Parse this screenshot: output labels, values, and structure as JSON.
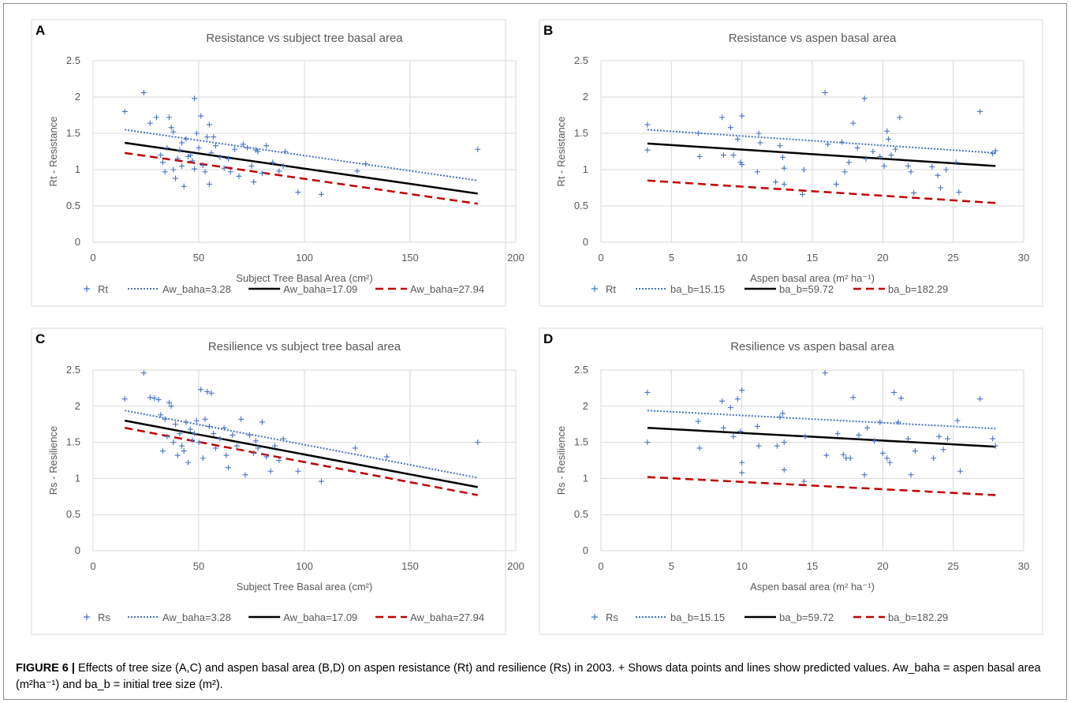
{
  "chart_data": [
    {
      "panel": "A",
      "type": "scatter",
      "title": "Resistance vs subject tree basal area",
      "xlabel": "Subject Tree Basal Area (cm²)",
      "ylabel": "Rt - Resistance",
      "xlim": [
        0,
        200
      ],
      "ylim": [
        0,
        2.5
      ],
      "xticks": [
        "0",
        "50",
        "100",
        "150",
        "200"
      ],
      "yticks": [
        "0",
        "0.5",
        "1",
        "1.5",
        "2",
        "2.5"
      ],
      "grid": true,
      "legend_position": "bottom",
      "points_name": "Rt",
      "points": [
        [
          15,
          1.8
        ],
        [
          24,
          2.06
        ],
        [
          27,
          1.64
        ],
        [
          30,
          1.72
        ],
        [
          32,
          1.2
        ],
        [
          33,
          1.1
        ],
        [
          34,
          0.97
        ],
        [
          35,
          1.3
        ],
        [
          36,
          1.72
        ],
        [
          37,
          1.58
        ],
        [
          38,
          1.52
        ],
        [
          38,
          1.0
        ],
        [
          39,
          0.88
        ],
        [
          40,
          1.15
        ],
        [
          41,
          1.27
        ],
        [
          42,
          1.37
        ],
        [
          42,
          1.05
        ],
        [
          43,
          0.77
        ],
        [
          44,
          1.42
        ],
        [
          45,
          1.18
        ],
        [
          46,
          1.2
        ],
        [
          47,
          1.12
        ],
        [
          48,
          1.01
        ],
        [
          48,
          1.98
        ],
        [
          49,
          1.5
        ],
        [
          50,
          1.3
        ],
        [
          51,
          1.74
        ],
        [
          52,
          1.06
        ],
        [
          53,
          0.97
        ],
        [
          54,
          1.45
        ],
        [
          55,
          1.62
        ],
        [
          55,
          0.8
        ],
        [
          56,
          1.23
        ],
        [
          57,
          1.45
        ],
        [
          58,
          1.33
        ],
        [
          60,
          1.17
        ],
        [
          62,
          1.02
        ],
        [
          64,
          1.15
        ],
        [
          65,
          0.97
        ],
        [
          67,
          1.28
        ],
        [
          69,
          0.91
        ],
        [
          71,
          1.35
        ],
        [
          73,
          1.3
        ],
        [
          75,
          1.05
        ],
        [
          76,
          0.83
        ],
        [
          77,
          1.27
        ],
        [
          78,
          1.25
        ],
        [
          80,
          0.95
        ],
        [
          82,
          1.33
        ],
        [
          85,
          1.1
        ],
        [
          88,
          0.98
        ],
        [
          90,
          1.05
        ],
        [
          91,
          1.25
        ],
        [
          97,
          0.69
        ],
        [
          108,
          0.66
        ],
        [
          125,
          0.98
        ],
        [
          129,
          1.08
        ],
        [
          182,
          1.28
        ]
      ],
      "series": [
        {
          "name": "Aw_baha=3.28",
          "x": [
            15,
            182
          ],
          "y": [
            1.55,
            0.85
          ],
          "style": "dotted",
          "color": "#4472c4"
        },
        {
          "name": "Aw_baha=17.09",
          "x": [
            15,
            182
          ],
          "y": [
            1.37,
            0.67
          ],
          "style": "solid",
          "color": "#000000"
        },
        {
          "name": "Aw_baha=27.94",
          "x": [
            15,
            182
          ],
          "y": [
            1.23,
            0.53
          ],
          "style": "dashed",
          "color": "#c00000"
        }
      ]
    },
    {
      "panel": "B",
      "type": "scatter",
      "title": "Resistance vs aspen basal area",
      "xlabel": "Aspen basal area (m² ha⁻¹)",
      "ylabel": "Rt - Resistance",
      "xlim": [
        0,
        30
      ],
      "ylim": [
        0,
        2.5
      ],
      "xticks": [
        "0",
        "5",
        "10",
        "15",
        "20",
        "25",
        "30"
      ],
      "yticks": [
        "0",
        "0.5",
        "1",
        "1.5",
        "2",
        "2.5"
      ],
      "grid": true,
      "legend_position": "bottom",
      "points_name": "Rt",
      "points": [
        [
          3.3,
          1.62
        ],
        [
          3.3,
          1.27
        ],
        [
          6.9,
          1.5
        ],
        [
          7,
          1.18
        ],
        [
          8.6,
          1.72
        ],
        [
          8.7,
          1.2
        ],
        [
          9.2,
          1.58
        ],
        [
          9.4,
          1.2
        ],
        [
          9.7,
          1.42
        ],
        [
          9.9,
          1.1
        ],
        [
          10,
          1.74
        ],
        [
          10,
          1.07
        ],
        [
          11.1,
          0.97
        ],
        [
          11.2,
          1.5
        ],
        [
          11.3,
          1.37
        ],
        [
          12.4,
          0.83
        ],
        [
          12.7,
          1.33
        ],
        [
          12.9,
          1.17
        ],
        [
          13,
          1.02
        ],
        [
          13,
          0.8
        ],
        [
          14.3,
          0.66
        ],
        [
          14.4,
          1.0
        ],
        [
          15.9,
          2.06
        ],
        [
          16.1,
          1.35
        ],
        [
          16.7,
          0.8
        ],
        [
          17.1,
          1.38
        ],
        [
          17.3,
          0.97
        ],
        [
          17.6,
          1.1
        ],
        [
          17.9,
          1.64
        ],
        [
          18.2,
          1.3
        ],
        [
          18.7,
          1.98
        ],
        [
          18.8,
          1.15
        ],
        [
          19.3,
          1.25
        ],
        [
          19.8,
          1.18
        ],
        [
          20.1,
          1.05
        ],
        [
          20.3,
          1.53
        ],
        [
          20.4,
          1.42
        ],
        [
          20.6,
          1.2
        ],
        [
          20.9,
          1.28
        ],
        [
          21.2,
          1.72
        ],
        [
          21.8,
          1.05
        ],
        [
          22,
          0.97
        ],
        [
          22.2,
          0.68
        ],
        [
          23.5,
          1.04
        ],
        [
          23.9,
          0.92
        ],
        [
          24.1,
          0.75
        ],
        [
          24.5,
          1.0
        ],
        [
          25.2,
          1.1
        ],
        [
          25.4,
          0.69
        ],
        [
          26.9,
          1.8
        ],
        [
          27.8,
          1.22
        ],
        [
          28,
          1.26
        ]
      ],
      "series": [
        {
          "name": "ba_b=15.15",
          "x": [
            3.3,
            28
          ],
          "y": [
            1.55,
            1.23
          ],
          "style": "dotted",
          "color": "#4472c4"
        },
        {
          "name": "ba_b=59.72",
          "x": [
            3.3,
            28
          ],
          "y": [
            1.36,
            1.05
          ],
          "style": "solid",
          "color": "#000000"
        },
        {
          "name": "ba_b=182.29",
          "x": [
            3.3,
            28
          ],
          "y": [
            0.85,
            0.54
          ],
          "style": "dashed",
          "color": "#c00000"
        }
      ]
    },
    {
      "panel": "C",
      "type": "scatter",
      "title": "Resilience vs subject tree basal area",
      "xlabel": "Subject Tree Basal area (cm²)",
      "ylabel": "Rs - Resilience",
      "xlim": [
        0,
        200
      ],
      "ylim": [
        0,
        2.5
      ],
      "xticks": [
        "0",
        "50",
        "100",
        "150",
        "200"
      ],
      "yticks": [
        "0",
        "0.5",
        "1",
        "1.5",
        "2",
        "2.5"
      ],
      "grid": true,
      "legend_position": "bottom",
      "points_name": "Rs",
      "points": [
        [
          15,
          2.1
        ],
        [
          24,
          2.46
        ],
        [
          27,
          2.12
        ],
        [
          29,
          2.11
        ],
        [
          31,
          2.09
        ],
        [
          32,
          1.88
        ],
        [
          33,
          1.38
        ],
        [
          34,
          1.82
        ],
        [
          35,
          1.58
        ],
        [
          36,
          2.05
        ],
        [
          37,
          2.0
        ],
        [
          38,
          1.5
        ],
        [
          39,
          1.75
        ],
        [
          40,
          1.32
        ],
        [
          41,
          1.62
        ],
        [
          42,
          1.45
        ],
        [
          43,
          1.38
        ],
        [
          44,
          1.78
        ],
        [
          45,
          1.22
        ],
        [
          46,
          1.68
        ],
        [
          47,
          1.53
        ],
        [
          48,
          1.62
        ],
        [
          49,
          1.8
        ],
        [
          50,
          1.5
        ],
        [
          51,
          2.23
        ],
        [
          52,
          1.28
        ],
        [
          53,
          1.82
        ],
        [
          54,
          2.2
        ],
        [
          55,
          1.72
        ],
        [
          56,
          2.18
        ],
        [
          57,
          1.62
        ],
        [
          58,
          1.42
        ],
        [
          60,
          1.55
        ],
        [
          62,
          1.7
        ],
        [
          63,
          1.32
        ],
        [
          64,
          1.15
        ],
        [
          66,
          1.6
        ],
        [
          68,
          1.45
        ],
        [
          70,
          1.82
        ],
        [
          72,
          1.05
        ],
        [
          74,
          1.6
        ],
        [
          76,
          1.35
        ],
        [
          77,
          1.52
        ],
        [
          78,
          1.42
        ],
        [
          80,
          1.78
        ],
        [
          82,
          1.3
        ],
        [
          84,
          1.1
        ],
        [
          86,
          1.45
        ],
        [
          88,
          1.25
        ],
        [
          90,
          1.55
        ],
        [
          97,
          1.1
        ],
        [
          108,
          0.96
        ],
        [
          124,
          1.42
        ],
        [
          139,
          1.3
        ],
        [
          182,
          1.5
        ]
      ],
      "series": [
        {
          "name": "Aw_baha=3.28",
          "x": [
            15,
            182
          ],
          "y": [
            1.94,
            1.01
          ],
          "style": "dotted",
          "color": "#4472c4"
        },
        {
          "name": "Aw_baha=17.09",
          "x": [
            15,
            182
          ],
          "y": [
            1.8,
            0.88
          ],
          "style": "solid",
          "color": "#000000"
        },
        {
          "name": "Aw_baha=27.94",
          "x": [
            15,
            182
          ],
          "y": [
            1.7,
            0.77
          ],
          "style": "dashed",
          "color": "#c00000"
        }
      ]
    },
    {
      "panel": "D",
      "type": "scatter",
      "title": "Resilience vs aspen basal area",
      "xlabel": "Aspen basal area (m² ha⁻¹)",
      "ylabel": "Rs - Resilience",
      "xlim": [
        0,
        30
      ],
      "ylim": [
        0,
        2.5
      ],
      "xticks": [
        "0",
        "5",
        "10",
        "15",
        "20",
        "25",
        "30"
      ],
      "yticks": [
        "0",
        "0.5",
        "1",
        "1.5",
        "2",
        "2.5"
      ],
      "grid": true,
      "legend_position": "bottom",
      "points_name": "Rs",
      "points": [
        [
          3.3,
          2.19
        ],
        [
          3.3,
          1.5
        ],
        [
          6.9,
          1.79
        ],
        [
          7,
          1.42
        ],
        [
          8.6,
          2.07
        ],
        [
          8.7,
          1.7
        ],
        [
          9.2,
          1.98
        ],
        [
          9.4,
          1.58
        ],
        [
          9.7,
          2.1
        ],
        [
          9.9,
          1.65
        ],
        [
          10,
          2.22
        ],
        [
          10,
          1.22
        ],
        [
          10,
          1.08
        ],
        [
          11.1,
          1.72
        ],
        [
          11.2,
          1.45
        ],
        [
          12.5,
          1.45
        ],
        [
          12.7,
          1.85
        ],
        [
          12.9,
          1.9
        ],
        [
          13,
          1.12
        ],
        [
          13,
          1.5
        ],
        [
          14.4,
          0.96
        ],
        [
          14.5,
          1.58
        ],
        [
          15.9,
          2.46
        ],
        [
          16,
          1.32
        ],
        [
          16.8,
          1.62
        ],
        [
          17.2,
          1.33
        ],
        [
          17.4,
          1.28
        ],
        [
          17.7,
          1.28
        ],
        [
          17.9,
          2.12
        ],
        [
          18.3,
          1.6
        ],
        [
          18.7,
          1.05
        ],
        [
          18.9,
          1.7
        ],
        [
          19.4,
          1.52
        ],
        [
          19.8,
          1.78
        ],
        [
          20,
          1.35
        ],
        [
          20.3,
          1.28
        ],
        [
          20.5,
          1.22
        ],
        [
          20.8,
          2.19
        ],
        [
          21.1,
          1.78
        ],
        [
          21.3,
          2.11
        ],
        [
          21.8,
          1.55
        ],
        [
          22,
          1.05
        ],
        [
          22.3,
          1.38
        ],
        [
          23.6,
          1.28
        ],
        [
          24,
          1.58
        ],
        [
          24.3,
          1.4
        ],
        [
          24.6,
          1.55
        ],
        [
          25.3,
          1.8
        ],
        [
          25.5,
          1.1
        ],
        [
          26.9,
          2.1
        ],
        [
          27.8,
          1.55
        ],
        [
          28,
          1.45
        ]
      ],
      "series": [
        {
          "name": "ba_b=15.15",
          "x": [
            3.3,
            28
          ],
          "y": [
            1.94,
            1.69
          ],
          "style": "dotted",
          "color": "#4472c4"
        },
        {
          "name": "ba_b=59.72",
          "x": [
            3.3,
            28
          ],
          "y": [
            1.7,
            1.44
          ],
          "style": "solid",
          "color": "#000000"
        },
        {
          "name": "ba_b=182.29",
          "x": [
            3.3,
            28
          ],
          "y": [
            1.02,
            0.77
          ],
          "style": "dashed",
          "color": "#c00000"
        }
      ]
    }
  ],
  "caption": {
    "label": "FIGURE 6 |",
    "text": "Effects of tree size (A,C) and aspen basal area (B,D) on aspen resistance (Rt) and resilience (Rs) in 2003. + Shows data points and lines show predicted values. Aw_baha = aspen basal area (m²ha⁻¹) and ba_b = initial tree size (m²)."
  },
  "colors": {
    "points": "#4472c4",
    "grid": "#d9d9d9",
    "panel_border": "#d9d9d9"
  }
}
